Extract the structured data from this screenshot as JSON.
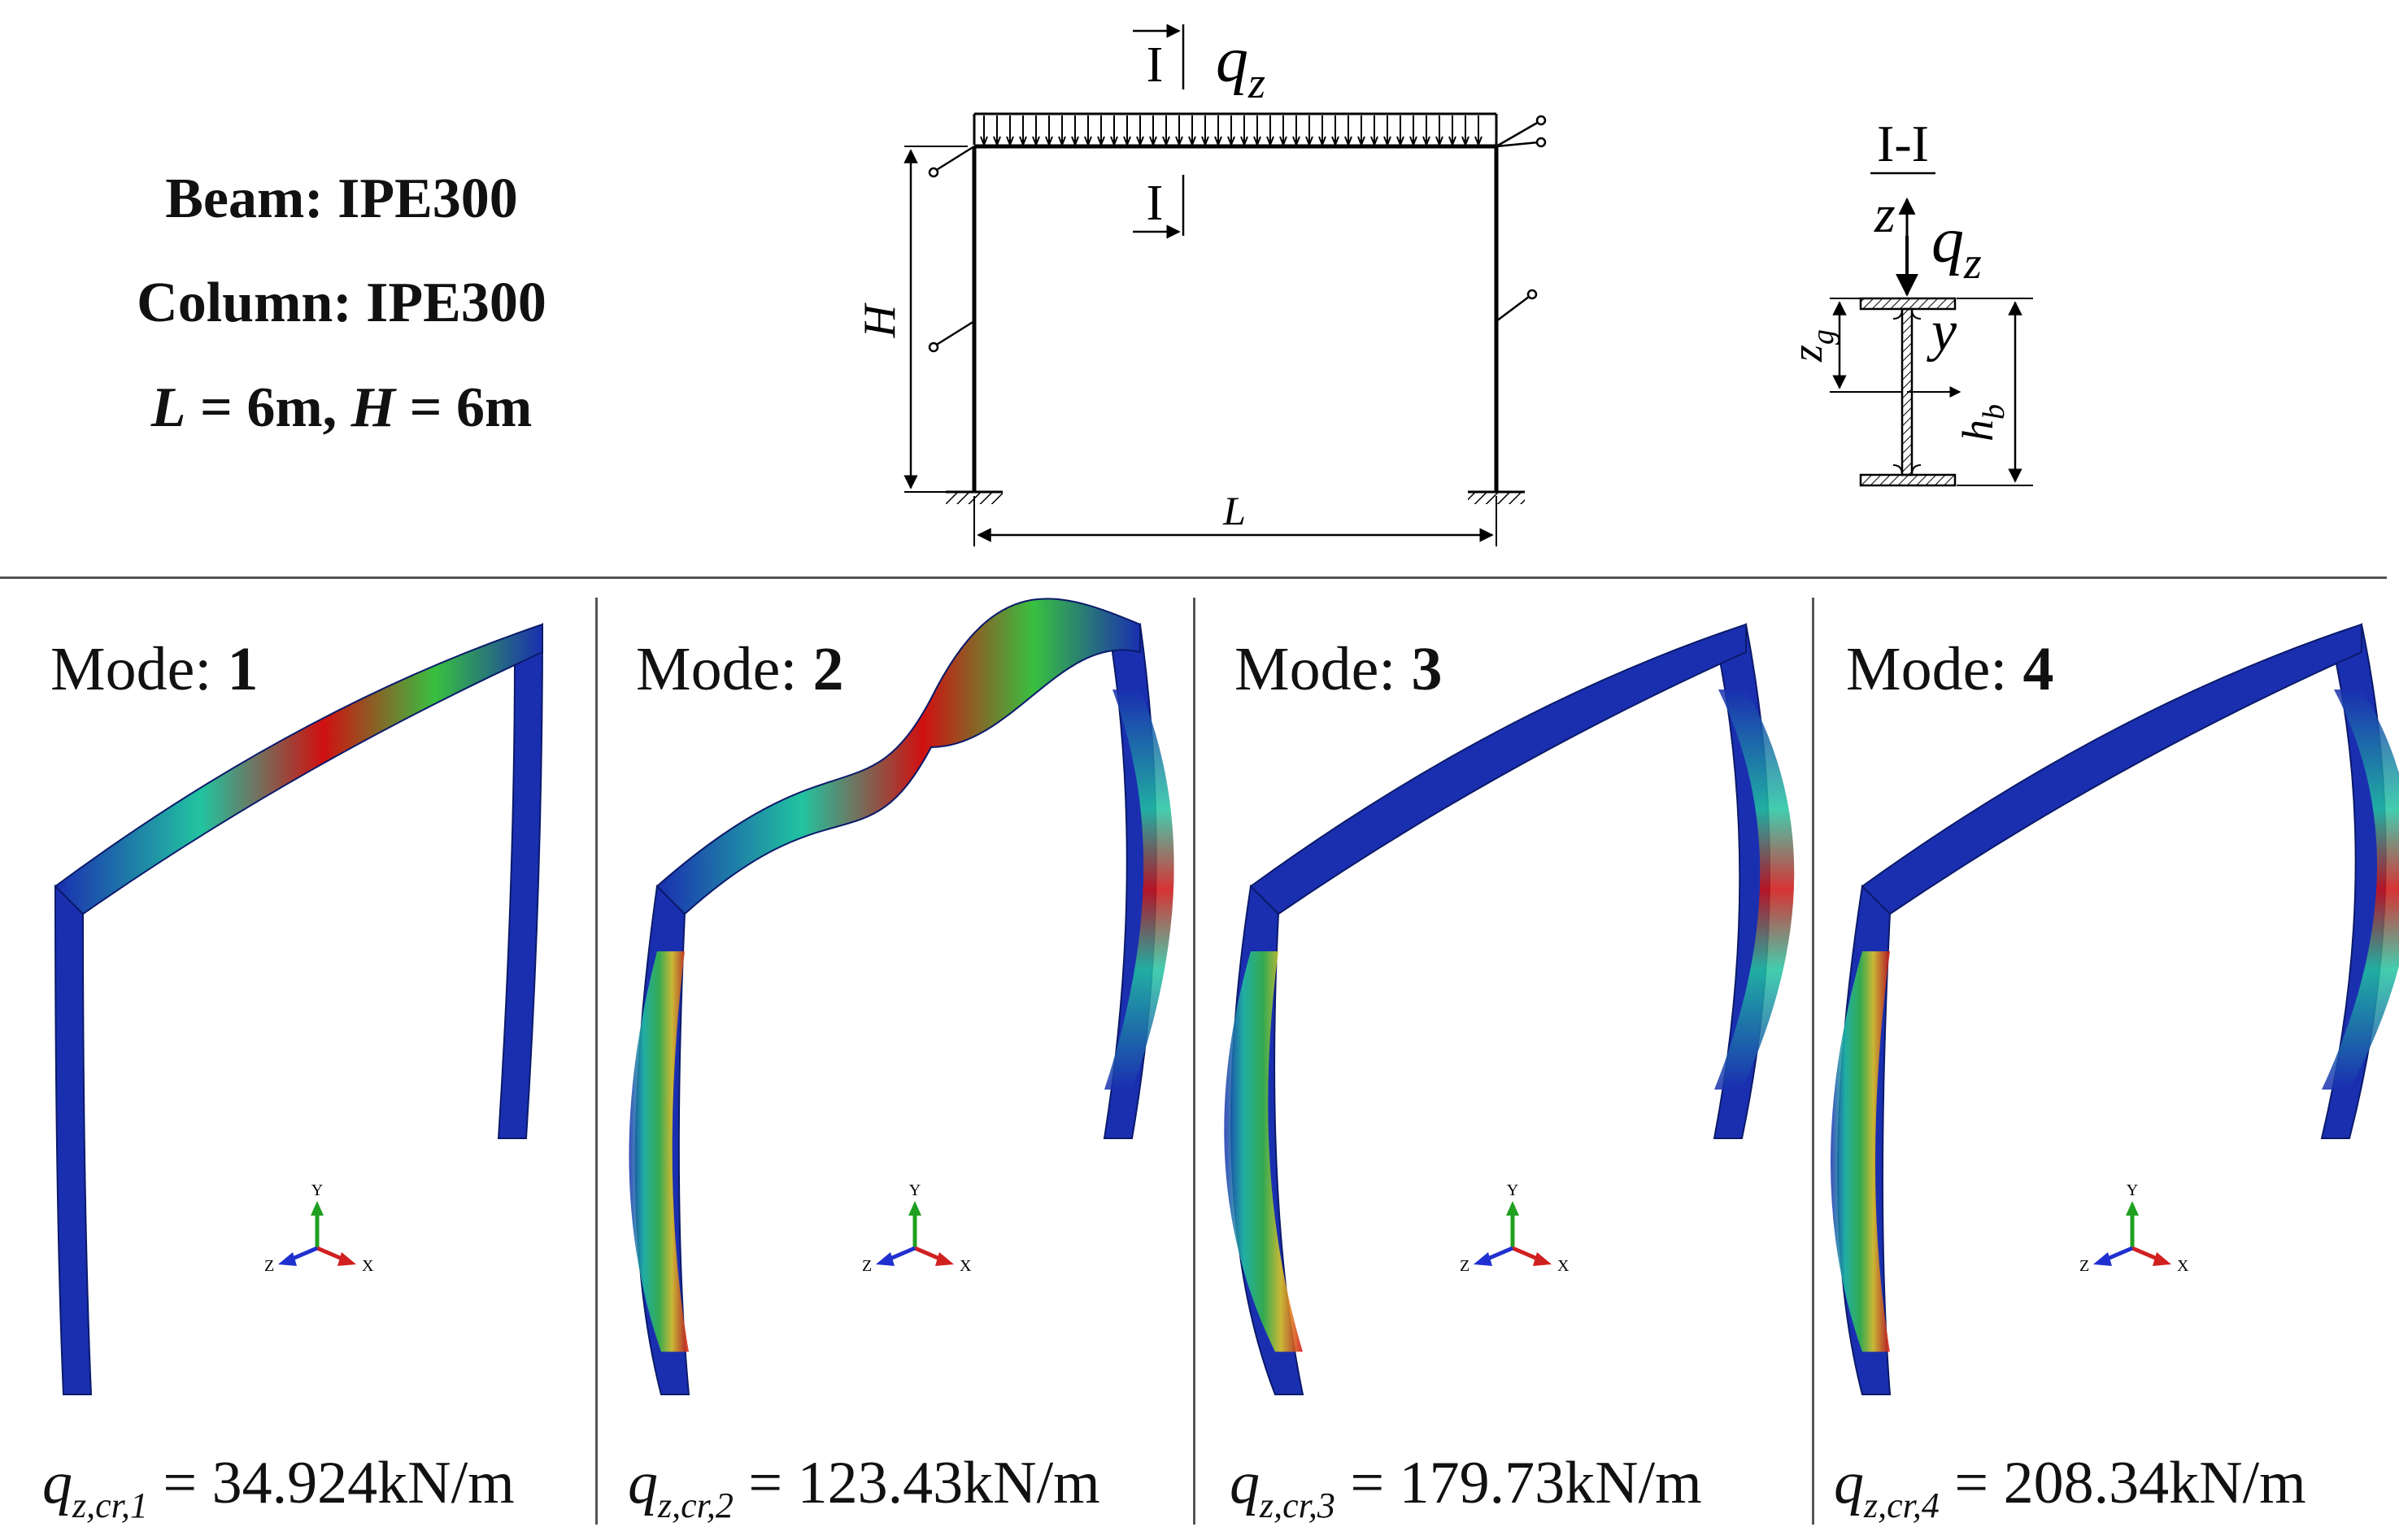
{
  "top": {
    "beam_key": "Beam",
    "beam_val": "IPE300",
    "column_key": "Column",
    "column_val": "IPE300",
    "L_sym": "L",
    "L_val": " = 6m, ",
    "H_sym": "H",
    "H_val": " = 6m"
  },
  "frame": {
    "section_mark": "I",
    "load": "q",
    "load_sub": "z",
    "H": "H",
    "L": "L"
  },
  "section": {
    "title": "I-I",
    "z_axis": "z",
    "load": "q",
    "load_sub": "z",
    "y_axis": "y",
    "zg": "z",
    "zg_sub": "g",
    "hb": "h",
    "hb_sub": "b"
  },
  "modes": [
    {
      "label": "Mode: ",
      "num": "1",
      "q": "q",
      "sub": "z,cr,1",
      "value": " = 34.924kN/m"
    },
    {
      "label": "Mode: ",
      "num": "2",
      "q": "q",
      "sub": "z,cr,2",
      "value": " = 123.43kN/m"
    },
    {
      "label": "Mode: ",
      "num": "3",
      "q": "q",
      "sub": "z,cr,3",
      "value": " = 179.73kN/m"
    },
    {
      "label": "Mode: ",
      "num": "4",
      "q": "q",
      "sub": "z,cr,4",
      "value": " = 208.34kN/m"
    }
  ],
  "triad": {
    "y": "Y",
    "z": "Z",
    "x": "X"
  },
  "colors": {
    "low": "#1a2fb0",
    "mid": "#22c4a0",
    "midhigh": "#38c040",
    "high": "#e8d020",
    "max": "#d01010",
    "separator": "#555555"
  }
}
